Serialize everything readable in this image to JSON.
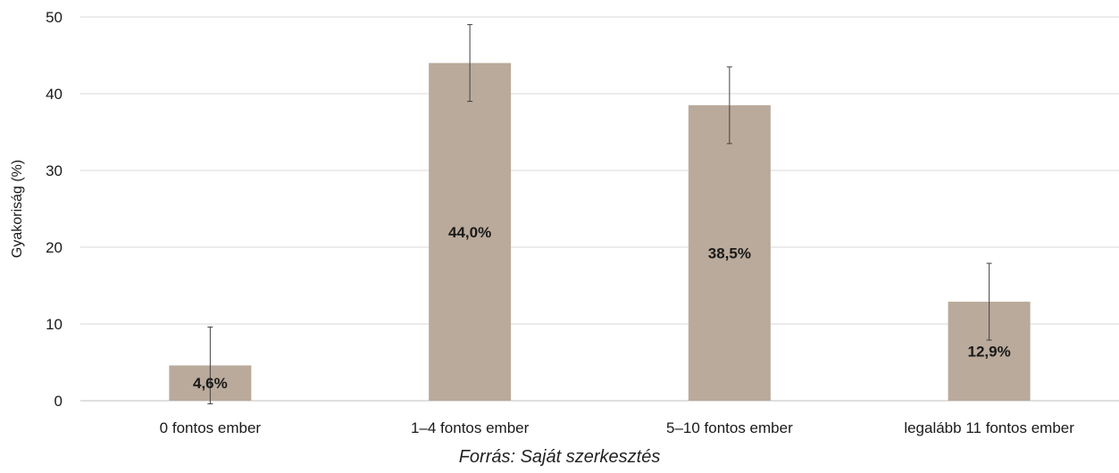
{
  "chart_data": {
    "type": "bar",
    "categories": [
      "0 fontos ember",
      "1–4 fontos ember",
      "5–10 fontos ember",
      "legalább 11 fontos ember"
    ],
    "values": [
      4.6,
      44.0,
      38.5,
      12.9
    ],
    "data_labels": [
      "4,6%",
      "44,0%",
      "38,5%",
      "12,9%"
    ],
    "error_bars": [
      {
        "low": -0.4,
        "high": 9.6
      },
      {
        "low": 39.0,
        "high": 49.0
      },
      {
        "low": 33.5,
        "high": 43.5
      },
      {
        "low": 7.9,
        "high": 17.9
      }
    ],
    "title": "",
    "xlabel": "",
    "ylabel": "Gyakoriság (%)",
    "ylim": [
      0,
      50
    ],
    "yticks": [
      0,
      10,
      20,
      30,
      40,
      50
    ],
    "grid": true,
    "bar_color": "#baaa9b",
    "gridline_color": "#d9d9d9",
    "errorbar_color": "#404040"
  },
  "caption": "Forrás: Saját szerkesztés"
}
